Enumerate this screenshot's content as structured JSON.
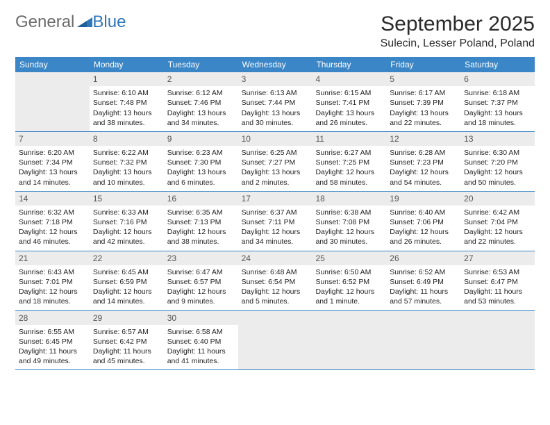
{
  "logo": {
    "word1": "General",
    "word2": "Blue"
  },
  "title": "September 2025",
  "location": "Sulecin, Lesser Poland, Poland",
  "weekdays": [
    "Sunday",
    "Monday",
    "Tuesday",
    "Wednesday",
    "Thursday",
    "Friday",
    "Saturday"
  ],
  "colors": {
    "header_bar": "#3b86c7",
    "daynum_bg": "#ececec",
    "logo_gray": "#6b6b6b",
    "logo_blue": "#2f77bb"
  },
  "weeks": [
    [
      {
        "blank": true
      },
      {
        "n": "1",
        "sr": "6:10 AM",
        "ss": "7:48 PM",
        "dl": "13 hours and 38 minutes."
      },
      {
        "n": "2",
        "sr": "6:12 AM",
        "ss": "7:46 PM",
        "dl": "13 hours and 34 minutes."
      },
      {
        "n": "3",
        "sr": "6:13 AM",
        "ss": "7:44 PM",
        "dl": "13 hours and 30 minutes."
      },
      {
        "n": "4",
        "sr": "6:15 AM",
        "ss": "7:41 PM",
        "dl": "13 hours and 26 minutes."
      },
      {
        "n": "5",
        "sr": "6:17 AM",
        "ss": "7:39 PM",
        "dl": "13 hours and 22 minutes."
      },
      {
        "n": "6",
        "sr": "6:18 AM",
        "ss": "7:37 PM",
        "dl": "13 hours and 18 minutes."
      }
    ],
    [
      {
        "n": "7",
        "sr": "6:20 AM",
        "ss": "7:34 PM",
        "dl": "13 hours and 14 minutes."
      },
      {
        "n": "8",
        "sr": "6:22 AM",
        "ss": "7:32 PM",
        "dl": "13 hours and 10 minutes."
      },
      {
        "n": "9",
        "sr": "6:23 AM",
        "ss": "7:30 PM",
        "dl": "13 hours and 6 minutes."
      },
      {
        "n": "10",
        "sr": "6:25 AM",
        "ss": "7:27 PM",
        "dl": "13 hours and 2 minutes."
      },
      {
        "n": "11",
        "sr": "6:27 AM",
        "ss": "7:25 PM",
        "dl": "12 hours and 58 minutes."
      },
      {
        "n": "12",
        "sr": "6:28 AM",
        "ss": "7:23 PM",
        "dl": "12 hours and 54 minutes."
      },
      {
        "n": "13",
        "sr": "6:30 AM",
        "ss": "7:20 PM",
        "dl": "12 hours and 50 minutes."
      }
    ],
    [
      {
        "n": "14",
        "sr": "6:32 AM",
        "ss": "7:18 PM",
        "dl": "12 hours and 46 minutes."
      },
      {
        "n": "15",
        "sr": "6:33 AM",
        "ss": "7:16 PM",
        "dl": "12 hours and 42 minutes."
      },
      {
        "n": "16",
        "sr": "6:35 AM",
        "ss": "7:13 PM",
        "dl": "12 hours and 38 minutes."
      },
      {
        "n": "17",
        "sr": "6:37 AM",
        "ss": "7:11 PM",
        "dl": "12 hours and 34 minutes."
      },
      {
        "n": "18",
        "sr": "6:38 AM",
        "ss": "7:08 PM",
        "dl": "12 hours and 30 minutes."
      },
      {
        "n": "19",
        "sr": "6:40 AM",
        "ss": "7:06 PM",
        "dl": "12 hours and 26 minutes."
      },
      {
        "n": "20",
        "sr": "6:42 AM",
        "ss": "7:04 PM",
        "dl": "12 hours and 22 minutes."
      }
    ],
    [
      {
        "n": "21",
        "sr": "6:43 AM",
        "ss": "7:01 PM",
        "dl": "12 hours and 18 minutes."
      },
      {
        "n": "22",
        "sr": "6:45 AM",
        "ss": "6:59 PM",
        "dl": "12 hours and 14 minutes."
      },
      {
        "n": "23",
        "sr": "6:47 AM",
        "ss": "6:57 PM",
        "dl": "12 hours and 9 minutes."
      },
      {
        "n": "24",
        "sr": "6:48 AM",
        "ss": "6:54 PM",
        "dl": "12 hours and 5 minutes."
      },
      {
        "n": "25",
        "sr": "6:50 AM",
        "ss": "6:52 PM",
        "dl": "12 hours and 1 minute."
      },
      {
        "n": "26",
        "sr": "6:52 AM",
        "ss": "6:49 PM",
        "dl": "11 hours and 57 minutes."
      },
      {
        "n": "27",
        "sr": "6:53 AM",
        "ss": "6:47 PM",
        "dl": "11 hours and 53 minutes."
      }
    ],
    [
      {
        "n": "28",
        "sr": "6:55 AM",
        "ss": "6:45 PM",
        "dl": "11 hours and 49 minutes."
      },
      {
        "n": "29",
        "sr": "6:57 AM",
        "ss": "6:42 PM",
        "dl": "11 hours and 45 minutes."
      },
      {
        "n": "30",
        "sr": "6:58 AM",
        "ss": "6:40 PM",
        "dl": "11 hours and 41 minutes."
      },
      {
        "blank": true
      },
      {
        "blank": true
      },
      {
        "blank": true
      },
      {
        "blank": true
      }
    ]
  ],
  "labels": {
    "sunrise": "Sunrise: ",
    "sunset": "Sunset: ",
    "daylight": "Daylight: "
  }
}
